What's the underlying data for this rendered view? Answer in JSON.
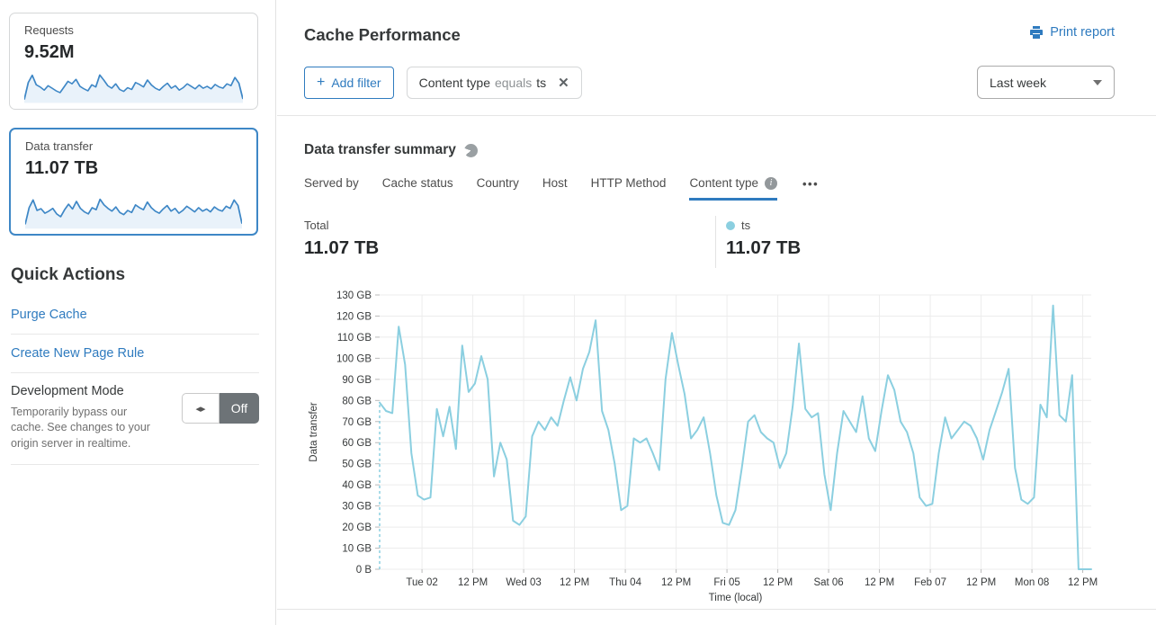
{
  "colors": {
    "accent_blue": "#2f7bbf",
    "series_cyan": "#8bcfe0",
    "sparkline_blue": "#3e87c6",
    "sparkline_fill": "#e9f2fa",
    "toggle_off_bg": "#6d7377",
    "grid": "#ececec"
  },
  "sidebar": {
    "cards": [
      {
        "label": "Requests",
        "value": "9.52M",
        "selected": false
      },
      {
        "label": "Data transfer",
        "value": "11.07 TB",
        "selected": true
      }
    ],
    "quick_actions": {
      "title": "Quick Actions",
      "links": [
        "Purge Cache",
        "Create New Page Rule"
      ],
      "dev_mode": {
        "title": "Development Mode",
        "description": "Temporarily bypass our cache. See changes to your origin server in realtime.",
        "toggle_arrows": "◂▸",
        "toggle_state": "Off"
      }
    }
  },
  "header": {
    "title": "Cache Performance",
    "print_label": "Print report",
    "add_filter": {
      "icon": "+",
      "label": "Add filter"
    },
    "filter_chip": {
      "field": "Content type",
      "operator": "equals",
      "value": "ts",
      "close_icon": "✕"
    },
    "time_range": "Last week"
  },
  "summary": {
    "title": "Data transfer summary",
    "tabs": [
      {
        "label": "Served by"
      },
      {
        "label": "Cache status"
      },
      {
        "label": "Country"
      },
      {
        "label": "Host"
      },
      {
        "label": "HTTP Method"
      },
      {
        "label": "Content type",
        "active": true,
        "info": true
      }
    ],
    "more_icon": "•••",
    "stats": {
      "total_label": "Total",
      "total_value": "11.07 TB",
      "series_label": "ts",
      "series_value": "11.07 TB"
    }
  },
  "chart_data": [
    {
      "type": "line",
      "title": "Data transfer summary",
      "ylabel": "Data transfer",
      "xlabel": "Time (local)",
      "unit": "GB",
      "ylim": [
        0,
        130
      ],
      "grid": true,
      "legend": {
        "entries": [
          "ts"
        ],
        "position": "above-right"
      },
      "y_ticks": [
        0,
        10,
        20,
        30,
        40,
        50,
        60,
        70,
        80,
        90,
        100,
        110,
        120,
        130
      ],
      "y_tick_labels": [
        "0 B",
        "10 GB",
        "20 GB",
        "30 GB",
        "40 GB",
        "50 GB",
        "60 GB",
        "70 GB",
        "80 GB",
        "90 GB",
        "100 GB",
        "110 GB",
        "120 GB",
        "130 GB"
      ],
      "x_tick_labels": [
        "Tue 02",
        "12 PM",
        "Wed 03",
        "12 PM",
        "Thu 04",
        "12 PM",
        "Fri 05",
        "12 PM",
        "Sat 06",
        "12 PM",
        "Feb 07",
        "12 PM",
        "Mon 08",
        "12 PM"
      ],
      "x_tick_hours": [
        10,
        22,
        34,
        46,
        58,
        70,
        82,
        94,
        106,
        118,
        130,
        142,
        154,
        166
      ],
      "total_hours": 168,
      "interval_hours": 1.5,
      "start_dashed": true,
      "series": [
        {
          "name": "ts",
          "color": "#8bcfe0",
          "values_gb": [
            79,
            75,
            74,
            115,
            97,
            55,
            35,
            33,
            34,
            76,
            63,
            77,
            57,
            106,
            84,
            88,
            101,
            90,
            44,
            60,
            52,
            23,
            21,
            25,
            63,
            70,
            66,
            72,
            68,
            80,
            91,
            80,
            95,
            103,
            118,
            75,
            66,
            50,
            28,
            30,
            62,
            60,
            62,
            55,
            47,
            90,
            112,
            97,
            83,
            62,
            66,
            72,
            55,
            35,
            22,
            21,
            28,
            48,
            70,
            73,
            65,
            62,
            60,
            48,
            55,
            77,
            107,
            76,
            72,
            74,
            45,
            28,
            55,
            75,
            70,
            65,
            82,
            62,
            56,
            75,
            92,
            85,
            70,
            65,
            55,
            34,
            30,
            31,
            55,
            72,
            62,
            66,
            70,
            68,
            62,
            52,
            66,
            75,
            84,
            95,
            48,
            33,
            31,
            34,
            78,
            72,
            125,
            73,
            70,
            92,
            0,
            0,
            0
          ]
        }
      ]
    },
    {
      "type": "area-sparkline",
      "title": "Requests",
      "values": [
        8,
        62,
        85,
        55,
        48,
        38,
        52,
        44,
        36,
        30,
        48,
        66,
        58,
        72,
        50,
        42,
        36,
        55,
        48,
        86,
        70,
        52,
        44,
        58,
        40,
        34,
        46,
        40,
        62,
        56,
        48,
        70,
        54,
        44,
        38,
        50,
        60,
        44,
        52,
        38,
        46,
        58,
        50,
        42,
        54,
        44,
        50,
        42,
        56,
        48,
        44,
        58,
        52,
        78,
        60,
        10
      ]
    },
    {
      "type": "area-sparkline",
      "title": "Data transfer",
      "values": [
        10,
        58,
        80,
        50,
        55,
        42,
        48,
        56,
        40,
        32,
        52,
        68,
        54,
        76,
        56,
        46,
        40,
        58,
        52,
        82,
        66,
        56,
        48,
        60,
        44,
        38,
        50,
        44,
        66,
        58,
        52,
        74,
        58,
        48,
        42,
        54,
        64,
        48,
        56,
        42,
        50,
        62,
        54,
        46,
        58,
        48,
        54,
        46,
        60,
        52,
        48,
        62,
        56,
        80,
        64,
        12
      ]
    }
  ]
}
